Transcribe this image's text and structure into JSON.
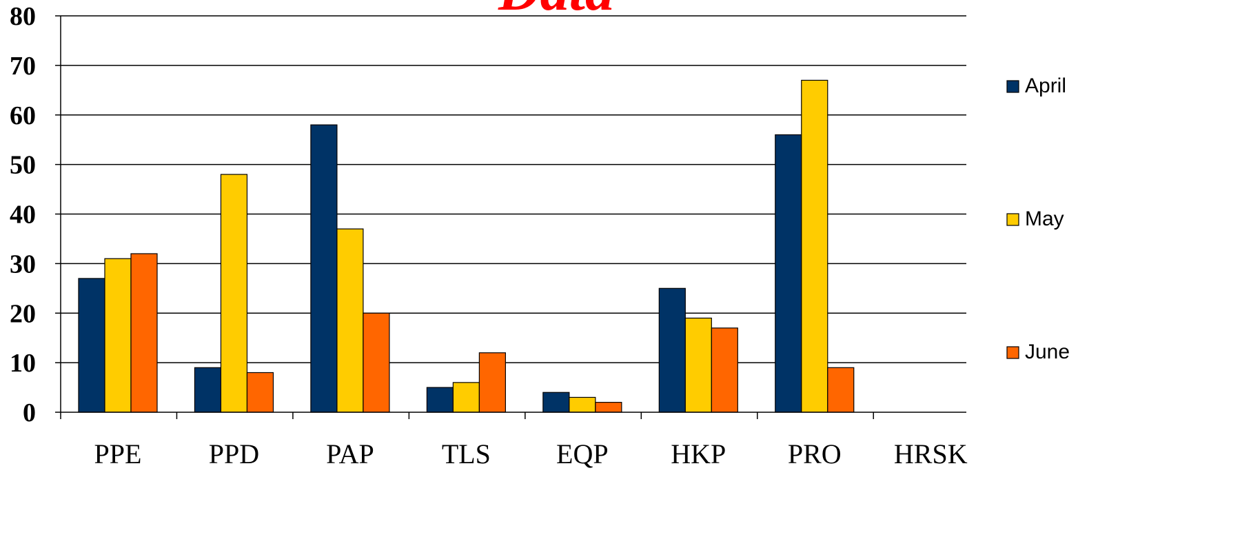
{
  "chart_data": {
    "type": "bar",
    "title": "Data",
    "title_color": "#FF0000",
    "categories": [
      "PPE",
      "PPD",
      "PAP",
      "TLS",
      "EQP",
      "HKP",
      "PRO",
      "HRSK"
    ],
    "series": [
      {
        "name": "April",
        "color": "#003366",
        "values": [
          27,
          9,
          58,
          5,
          4,
          25,
          56,
          0
        ]
      },
      {
        "name": "May",
        "color": "#FFCC00",
        "values": [
          31,
          48,
          37,
          6,
          3,
          19,
          67,
          0
        ]
      },
      {
        "name": "June",
        "color": "#FF6600",
        "values": [
          32,
          8,
          20,
          12,
          2,
          17,
          9,
          0
        ]
      }
    ],
    "y_ticks": [
      "0",
      "10",
      "20",
      "30",
      "40",
      "50",
      "60",
      "70",
      "80"
    ],
    "ylim": [
      0,
      80
    ],
    "grid": true,
    "legend_position": "right"
  }
}
